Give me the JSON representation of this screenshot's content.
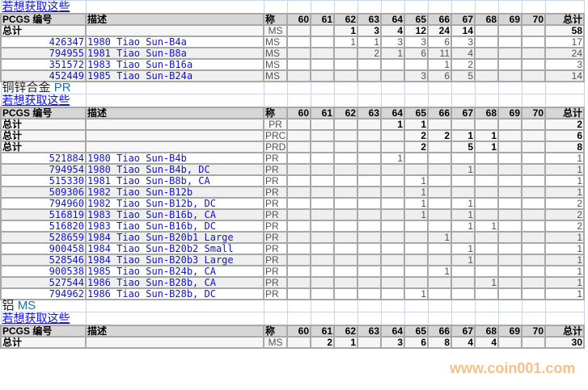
{
  "link_label": "若想获取这些",
  "headers": {
    "code": "PCGS 编号",
    "desc": "描述",
    "grade": "称",
    "grades": [
      "60",
      "61",
      "62",
      "63",
      "64",
      "65",
      "66",
      "67",
      "68",
      "69",
      "70"
    ],
    "total": "总计"
  },
  "total_label": "总计",
  "watermark": "www.coin001.com",
  "sections": [
    {
      "title": "",
      "title_grade": "",
      "totals": [
        {
          "grade": "MS",
          "values": [
            null,
            null,
            1,
            3,
            4,
            12,
            24,
            14,
            null,
            null,
            null
          ],
          "total": 58
        }
      ],
      "rows": [
        {
          "code": "426347",
          "desc": "1980 Tiao Sun-B4a",
          "grade": "MS",
          "values": [
            null,
            null,
            1,
            1,
            3,
            3,
            6,
            3,
            null,
            null,
            null
          ],
          "total": 17
        },
        {
          "code": "794955",
          "desc": "1981 Tiao Sun-B8a",
          "grade": "MS",
          "values": [
            null,
            null,
            null,
            2,
            1,
            6,
            11,
            4,
            null,
            null,
            null
          ],
          "total": 24
        },
        {
          "code": "351572",
          "desc": "1983 Tiao Sun-B16a",
          "grade": "MS",
          "values": [
            null,
            null,
            null,
            null,
            null,
            null,
            1,
            2,
            null,
            null,
            null
          ],
          "total": 3
        },
        {
          "code": "452449",
          "desc": "1985 Tiao Sun-B24a",
          "grade": "MS",
          "values": [
            null,
            null,
            null,
            null,
            null,
            3,
            6,
            5,
            null,
            null,
            null
          ],
          "total": 14
        }
      ]
    },
    {
      "title": "铜锌合金",
      "title_grade": "PR",
      "totals": [
        {
          "grade": "PR",
          "values": [
            null,
            null,
            null,
            null,
            1,
            1,
            null,
            null,
            null,
            null,
            null
          ],
          "total": 2
        },
        {
          "grade": "PRC",
          "values": [
            null,
            null,
            null,
            null,
            null,
            2,
            2,
            1,
            1,
            null,
            null
          ],
          "total": 6
        },
        {
          "grade": "PRD",
          "values": [
            null,
            null,
            null,
            null,
            null,
            2,
            null,
            5,
            1,
            null,
            null
          ],
          "total": 8
        }
      ],
      "rows": [
        {
          "code": "521884",
          "desc": "1980 Tiao Sun-B4b",
          "grade": "PR",
          "values": [
            null,
            null,
            null,
            null,
            1,
            null,
            null,
            null,
            null,
            null,
            null
          ],
          "total": 1
        },
        {
          "code": "794954",
          "desc": "1980 Tiao Sun-B4b, DC",
          "grade": "PR",
          "values": [
            null,
            null,
            null,
            null,
            null,
            null,
            null,
            1,
            null,
            null,
            null
          ],
          "total": 1
        },
        {
          "code": "515330",
          "desc": "1981 Tiao Sun-B8b, CA",
          "grade": "PR",
          "values": [
            null,
            null,
            null,
            null,
            null,
            1,
            null,
            null,
            null,
            null,
            null
          ],
          "total": 1
        },
        {
          "code": "509306",
          "desc": "1982 Tiao Sun-B12b",
          "grade": "PR",
          "values": [
            null,
            null,
            null,
            null,
            null,
            1,
            null,
            null,
            null,
            null,
            null
          ],
          "total": 1
        },
        {
          "code": "794960",
          "desc": "1982 Tiao Sun-B12b, DC",
          "grade": "PR",
          "values": [
            null,
            null,
            null,
            null,
            null,
            1,
            null,
            1,
            null,
            null,
            null
          ],
          "total": 2
        },
        {
          "code": "516819",
          "desc": "1983 Tiao Sun-B16b, CA",
          "grade": "PR",
          "values": [
            null,
            null,
            null,
            null,
            null,
            1,
            null,
            1,
            null,
            null,
            null
          ],
          "total": 2
        },
        {
          "code": "516820",
          "desc": "1983 Tiao Sun-B16b, DC",
          "grade": "PR",
          "values": [
            null,
            null,
            null,
            null,
            null,
            null,
            null,
            1,
            1,
            null,
            null
          ],
          "total": 2
        },
        {
          "code": "528659",
          "desc": "1984 Tiao Sun-B20b1 Large",
          "grade": "PR",
          "values": [
            null,
            null,
            null,
            null,
            null,
            null,
            1,
            null,
            null,
            null,
            null
          ],
          "total": 1
        },
        {
          "code": "900458",
          "desc": "1984 Tiao Sun-B20b2 Small",
          "grade": "PR",
          "values": [
            null,
            null,
            null,
            null,
            null,
            null,
            null,
            1,
            null,
            null,
            null
          ],
          "total": 1
        },
        {
          "code": "528546",
          "desc": "1984 Tiao Sun-B20b3 Large",
          "grade": "PR",
          "values": [
            null,
            null,
            null,
            null,
            null,
            null,
            null,
            1,
            null,
            null,
            null
          ],
          "total": 1
        },
        {
          "code": "900538",
          "desc": "1985 Tiao Sun-B24b, CA",
          "grade": "PR",
          "values": [
            null,
            null,
            null,
            null,
            null,
            null,
            1,
            null,
            null,
            null,
            null
          ],
          "total": 1
        },
        {
          "code": "527544",
          "desc": "1986 Tiao Sun-B28b, CA",
          "grade": "PR",
          "values": [
            null,
            null,
            null,
            null,
            null,
            null,
            null,
            null,
            1,
            null,
            null
          ],
          "total": 1
        },
        {
          "code": "794962",
          "desc": "1986 Tiao Sun-B28b, DC",
          "grade": "PR",
          "values": [
            null,
            null,
            null,
            null,
            null,
            1,
            null,
            null,
            null,
            null,
            null
          ],
          "total": 1
        }
      ]
    },
    {
      "title": "铝",
      "title_grade": "MS",
      "totals": [
        {
          "grade": "MS",
          "values": [
            null,
            2,
            1,
            null,
            3,
            6,
            8,
            4,
            4,
            null,
            null
          ],
          "total": 30
        }
      ],
      "rows": []
    }
  ]
}
